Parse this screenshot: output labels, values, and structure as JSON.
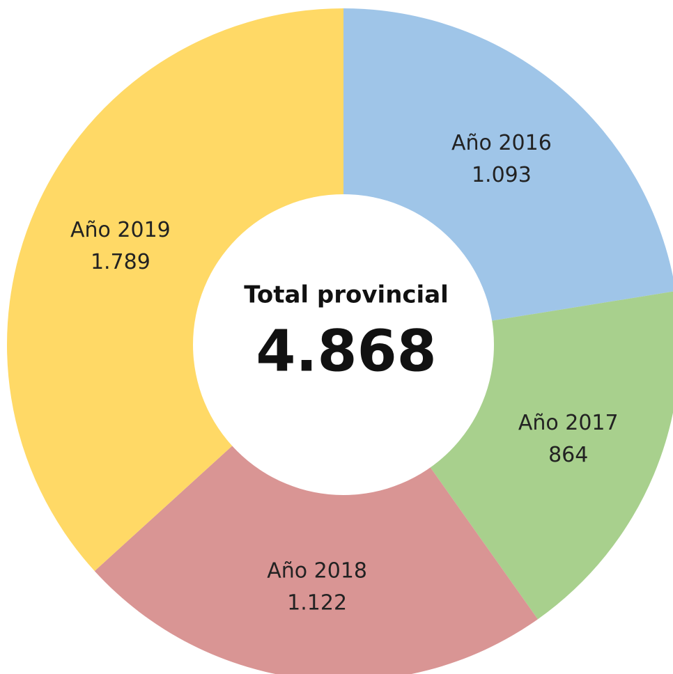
{
  "chart_data": {
    "type": "donut",
    "categories": [
      "Año 2016",
      "Año 2017",
      "Año 2018",
      "Año 2019"
    ],
    "values": [
      1093,
      864,
      1122,
      1789
    ],
    "value_labels": [
      "1.093",
      "864",
      "1.122",
      "1.789"
    ],
    "colors": [
      "#9fc5e8",
      "#a8d08d",
      "#d99594",
      "#ffd966"
    ],
    "center_title": "Total provincial",
    "center_value": "4.868"
  }
}
